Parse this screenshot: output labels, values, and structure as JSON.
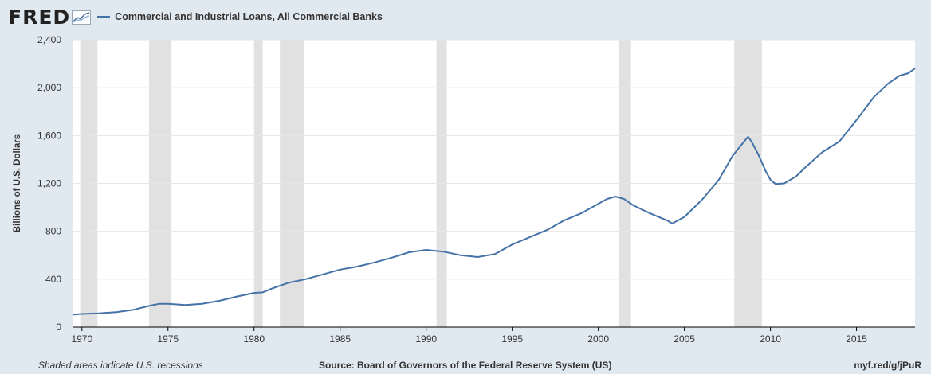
{
  "header": {
    "logo": "FRED",
    "legend_label": "Commercial and Industrial Loans, All Commercial Banks"
  },
  "footer": {
    "note": "Shaded areas indicate U.S. recessions",
    "source": "Source: Board of Governors of the Federal Reserve System (US)",
    "link": "myf.red/g/jPuR"
  },
  "colors": {
    "line": "#4572a7",
    "recession": "#e1e1e1",
    "background": "#e1e9f0",
    "plot": "#ffffff"
  },
  "chart_data": {
    "type": "line",
    "ylabel": "Billions of U.S. Dollars",
    "xlabel": "",
    "xlim": [
      1969.5,
      2018.4
    ],
    "ylim": [
      0,
      2400
    ],
    "yticks": [
      0,
      400,
      800,
      1200,
      1600,
      2000,
      2400
    ],
    "ytick_labels": [
      "0",
      "400",
      "800",
      "1,200",
      "1,600",
      "2,000",
      "2,400"
    ],
    "xticks": [
      1970,
      1975,
      1980,
      1985,
      1990,
      1995,
      2000,
      2005,
      2010,
      2015
    ],
    "grid": true,
    "recessions": [
      [
        1969.9,
        1970.9
      ],
      [
        1973.9,
        1975.2
      ],
      [
        1980.0,
        1980.5
      ],
      [
        1981.5,
        1982.9
      ],
      [
        1990.6,
        1991.2
      ],
      [
        2001.2,
        2001.9
      ],
      [
        2007.9,
        2009.5
      ]
    ],
    "series": [
      {
        "name": "Commercial and Industrial Loans, All Commercial Banks",
        "x": [
          1969.5,
          1970.0,
          1971.0,
          1972.0,
          1973.0,
          1974.0,
          1974.5,
          1975.0,
          1976.0,
          1977.0,
          1978.0,
          1979.0,
          1980.0,
          1980.5,
          1981.0,
          1982.0,
          1983.0,
          1984.0,
          1985.0,
          1986.0,
          1987.0,
          1988.0,
          1989.0,
          1990.0,
          1991.0,
          1992.0,
          1993.0,
          1994.0,
          1995.0,
          1996.0,
          1997.0,
          1998.0,
          1999.0,
          2000.0,
          2000.5,
          2001.0,
          2001.5,
          2002.0,
          2003.0,
          2004.0,
          2004.3,
          2005.0,
          2006.0,
          2007.0,
          2007.8,
          2008.3,
          2008.7,
          2008.9,
          2009.3,
          2009.7,
          2010.0,
          2010.3,
          2010.8,
          2011.5,
          2012.0,
          2013.0,
          2014.0,
          2015.0,
          2016.0,
          2016.8,
          2017.5,
          2018.0,
          2018.4
        ],
        "values": [
          105,
          110,
          115,
          125,
          145,
          180,
          195,
          195,
          185,
          195,
          220,
          255,
          285,
          290,
          320,
          370,
          400,
          440,
          480,
          505,
          540,
          580,
          625,
          645,
          630,
          600,
          585,
          610,
          690,
          750,
          810,
          890,
          950,
          1030,
          1070,
          1090,
          1070,
          1020,
          950,
          890,
          865,
          920,
          1060,
          1230,
          1430,
          1520,
          1590,
          1550,
          1440,
          1310,
          1230,
          1195,
          1200,
          1260,
          1330,
          1460,
          1550,
          1730,
          1920,
          2030,
          2100,
          2120,
          2160
        ]
      }
    ]
  }
}
